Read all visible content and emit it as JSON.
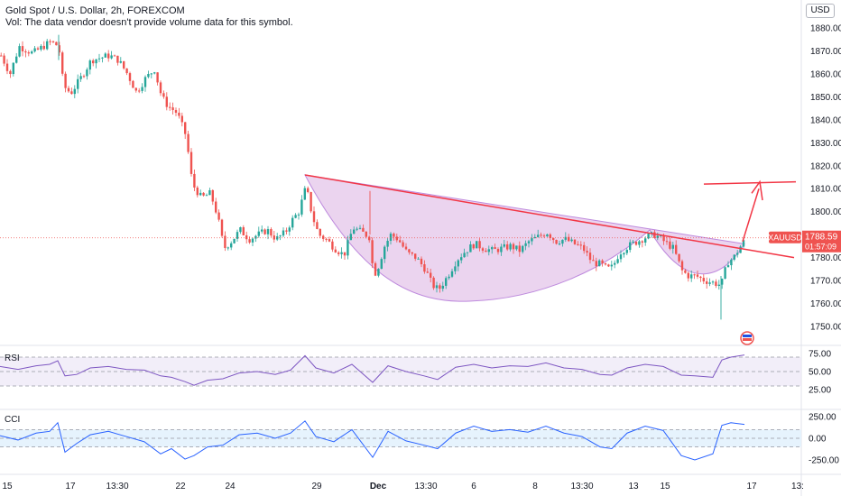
{
  "header": {
    "title": "Gold Spot / U.S. Dollar, 2h, FOREXCOM",
    "volume_note": "Vol: The data vendor doesn't provide volume data for this symbol."
  },
  "currency": "USD",
  "price_tag": {
    "symbol": "XAUUSD",
    "price": "1788.59",
    "countdown": "01:57:09"
  },
  "colors": {
    "up": "#26a69a",
    "down": "#ef5350",
    "pattern": "#f23645",
    "cup_fill": "#e1bee7",
    "rsi": "#7e57c2",
    "cci": "#2962ff"
  },
  "chart_data": [
    {
      "type": "candlestick",
      "ylim": [
        1745,
        1890
      ],
      "y_ticks": [
        "1880.00",
        "1870.00",
        "1860.00",
        "1850.00",
        "1840.00",
        "1830.00",
        "1820.00",
        "1810.00",
        "1800.00",
        "1790.00",
        "1780.00",
        "1770.00",
        "1760.00",
        "1750.00"
      ],
      "x_ticks": [
        "15",
        "17",
        "13:30",
        "22",
        "24",
        "29",
        "Dec",
        "13:30",
        "6",
        "8",
        "13:30",
        "13",
        "15",
        "17",
        "13:"
      ],
      "close_anchors": [
        [
          0,
          1868
        ],
        [
          10,
          1860
        ],
        [
          20,
          1872
        ],
        [
          35,
          1869
        ],
        [
          55,
          1874
        ],
        [
          64,
          1872
        ],
        [
          67,
          1860
        ],
        [
          72,
          1853
        ],
        [
          78,
          1852
        ],
        [
          88,
          1858
        ],
        [
          100,
          1866
        ],
        [
          110,
          1867
        ],
        [
          120,
          1868
        ],
        [
          130,
          1866
        ],
        [
          140,
          1860
        ],
        [
          150,
          1852
        ],
        [
          160,
          1858
        ],
        [
          170,
          1862
        ],
        [
          178,
          1850
        ],
        [
          185,
          1846
        ],
        [
          195,
          1843
        ],
        [
          205,
          1833
        ],
        [
          212,
          1812
        ],
        [
          222,
          1806
        ],
        [
          232,
          1808
        ],
        [
          240,
          1798
        ],
        [
          247,
          1784
        ],
        [
          255,
          1787
        ],
        [
          265,
          1792
        ],
        [
          275,
          1788
        ],
        [
          285,
          1790
        ],
        [
          295,
          1792
        ],
        [
          305,
          1788
        ],
        [
          315,
          1791
        ],
        [
          322,
          1796
        ],
        [
          330,
          1800
        ],
        [
          338,
          1811
        ],
        [
          345,
          1798
        ],
        [
          352,
          1790
        ],
        [
          360,
          1788
        ],
        [
          370,
          1784
        ],
        [
          380,
          1781
        ],
        [
          390,
          1793
        ],
        [
          400,
          1791
        ],
        [
          408,
          1789
        ],
        [
          413,
          1772
        ],
        [
          418,
          1776
        ],
        [
          425,
          1785
        ],
        [
          432,
          1790
        ],
        [
          440,
          1788
        ],
        [
          450,
          1782
        ],
        [
          460,
          1780
        ],
        [
          470,
          1775
        ],
        [
          478,
          1768
        ],
        [
          485,
          1766
        ],
        [
          495,
          1772
        ],
        [
          505,
          1779
        ],
        [
          515,
          1783
        ],
        [
          525,
          1786
        ],
        [
          535,
          1784
        ],
        [
          545,
          1783
        ],
        [
          555,
          1784
        ],
        [
          565,
          1785
        ],
        [
          575,
          1783
        ],
        [
          585,
          1787
        ],
        [
          595,
          1789
        ],
        [
          605,
          1791
        ],
        [
          615,
          1787
        ],
        [
          625,
          1788
        ],
        [
          635,
          1786
        ],
        [
          645,
          1784
        ],
        [
          655,
          1778
        ],
        [
          665,
          1777
        ],
        [
          672,
          1775
        ],
        [
          678,
          1776
        ],
        [
          685,
          1782
        ],
        [
          695,
          1785
        ],
        [
          705,
          1787
        ],
        [
          715,
          1789
        ],
        [
          725,
          1790
        ],
        [
          735,
          1787
        ],
        [
          745,
          1784
        ],
        [
          755,
          1774
        ],
        [
          762,
          1772
        ],
        [
          770,
          1772
        ],
        [
          780,
          1770
        ],
        [
          790,
          1769
        ],
        [
          798,
          1768
        ],
        [
          805,
          1778
        ],
        [
          812,
          1780
        ],
        [
          818,
          1784
        ],
        [
          825,
          1788
        ]
      ]
    },
    {
      "type": "line",
      "title": "RSI",
      "ylim": [
        18,
        78
      ],
      "levels": [
        70,
        50,
        30
      ],
      "y_ticks": [
        "75.00",
        "50.00",
        "25.00"
      ],
      "x": [
        0,
        20,
        40,
        55,
        64,
        72,
        85,
        100,
        120,
        140,
        160,
        178,
        190,
        205,
        215,
        230,
        247,
        265,
        285,
        305,
        322,
        338,
        350,
        370,
        390,
        413,
        430,
        450,
        470,
        485,
        505,
        525,
        545,
        565,
        585,
        605,
        625,
        645,
        665,
        678,
        695,
        715,
        735,
        755,
        770,
        790,
        800,
        810,
        825
      ],
      "values": [
        57,
        53,
        58,
        60,
        65,
        44,
        46,
        55,
        57,
        53,
        52,
        44,
        42,
        36,
        31,
        38,
        40,
        48,
        50,
        46,
        52,
        72,
        55,
        48,
        60,
        35,
        58,
        50,
        44,
        39,
        56,
        60,
        55,
        58,
        57,
        62,
        55,
        53,
        46,
        45,
        55,
        60,
        57,
        45,
        44,
        42,
        66,
        70,
        73
      ]
    },
    {
      "type": "line",
      "title": "CCI",
      "ylim": [
        -320,
        300
      ],
      "levels": [
        100,
        0,
        -100
      ],
      "y_ticks": [
        "250.00",
        "0.00",
        "-250.00"
      ],
      "x": [
        0,
        20,
        40,
        55,
        64,
        72,
        85,
        100,
        120,
        140,
        160,
        178,
        190,
        205,
        215,
        230,
        247,
        265,
        285,
        305,
        322,
        338,
        350,
        370,
        390,
        413,
        430,
        450,
        470,
        485,
        505,
        525,
        545,
        565,
        585,
        605,
        625,
        645,
        665,
        678,
        695,
        715,
        735,
        755,
        770,
        790,
        800,
        810,
        825
      ],
      "values": [
        30,
        -20,
        60,
        80,
        180,
        -160,
        -60,
        40,
        80,
        20,
        -40,
        -180,
        -120,
        -240,
        -200,
        -100,
        -80,
        40,
        60,
        0,
        60,
        200,
        20,
        -40,
        100,
        -220,
        80,
        -30,
        -80,
        -120,
        60,
        140,
        80,
        100,
        70,
        140,
        60,
        20,
        -100,
        -120,
        60,
        140,
        90,
        -200,
        -250,
        -180,
        150,
        180,
        160
      ]
    }
  ]
}
